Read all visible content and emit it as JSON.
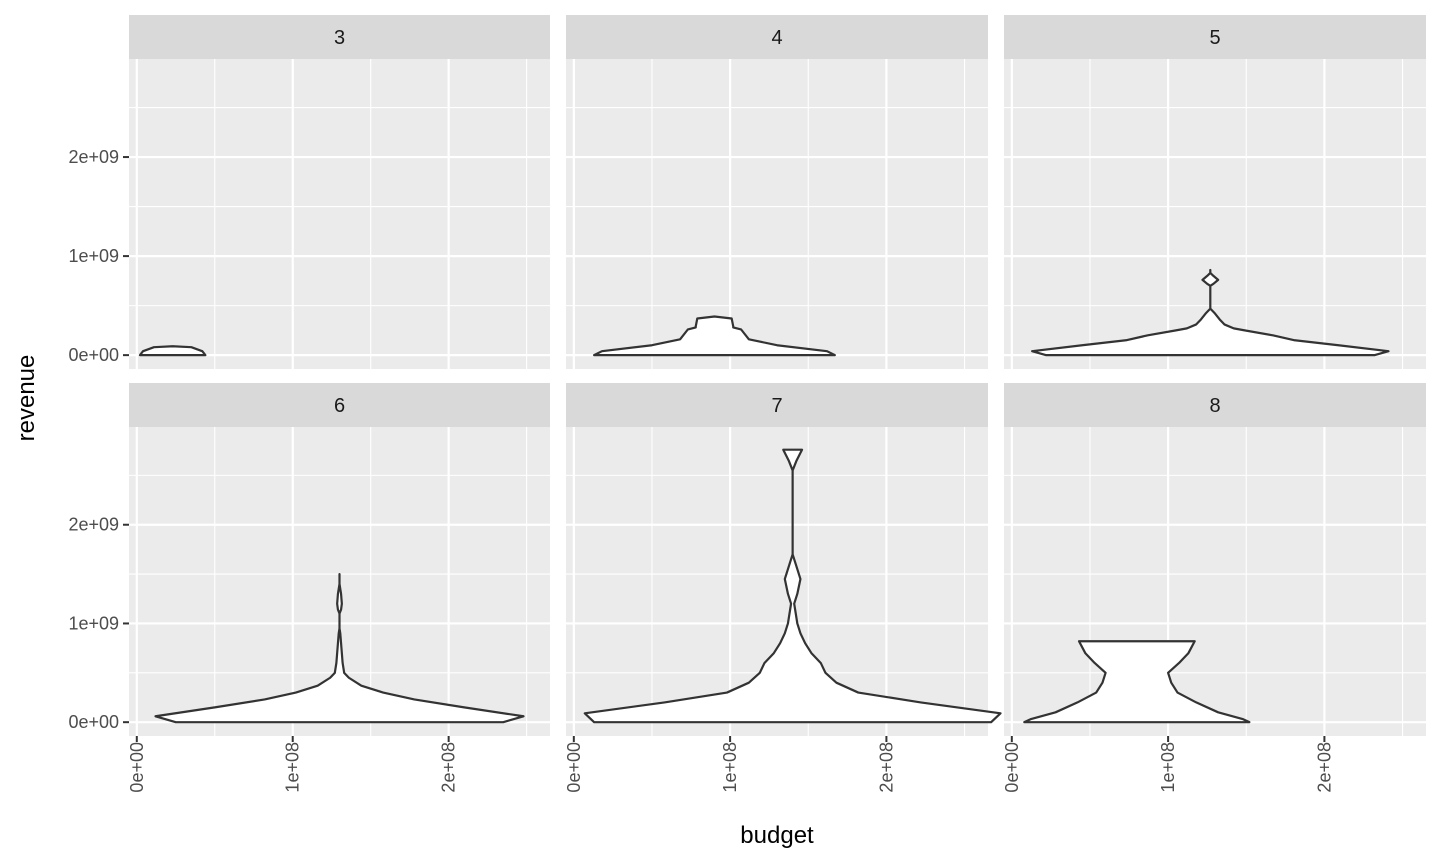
{
  "chart_data": {
    "type": "violin",
    "facet_by": "panel",
    "xlabel": "budget",
    "ylabel": "revenue",
    "xlim": [
      -5000000,
      265000000
    ],
    "ylim": [
      -140000000,
      2990000000
    ],
    "x_ticks": [
      {
        "value": 0,
        "label": "0e+00"
      },
      {
        "value": 100000000,
        "label": "1e+08"
      },
      {
        "value": 200000000,
        "label": "2e+08"
      }
    ],
    "y_ticks": [
      {
        "value": 0,
        "label": "0e+00"
      },
      {
        "value": 1000000000,
        "label": "1e+09"
      },
      {
        "value": 2000000000,
        "label": "2e+09"
      }
    ],
    "panels": [
      {
        "label": "3",
        "center": 23000000,
        "profile": [
          [
            0,
            21000000
          ],
          [
            40000000,
            19000000
          ],
          [
            80000000,
            12000000
          ],
          [
            90000000,
            0
          ]
        ]
      },
      {
        "label": "4",
        "center": 90000000,
        "profile": [
          [
            0,
            77000000
          ],
          [
            40000000,
            72000000
          ],
          [
            100000000,
            40000000
          ],
          [
            160000000,
            22000000
          ],
          [
            260000000,
            17000000
          ],
          [
            280000000,
            12000000
          ],
          [
            290000000,
            12000000
          ],
          [
            370000000,
            11000000
          ],
          [
            390000000,
            0
          ]
        ]
      },
      {
        "label": "5",
        "center": 127000000,
        "profile": [
          [
            0,
            105000000
          ],
          [
            40000000,
            114000000
          ],
          [
            100000000,
            82000000
          ],
          [
            150000000,
            54000000
          ],
          [
            200000000,
            40000000
          ],
          [
            250000000,
            22000000
          ],
          [
            270000000,
            15000000
          ],
          [
            310000000,
            9000000
          ],
          [
            360000000,
            6000000
          ],
          [
            420000000,
            3000000
          ],
          [
            470000000,
            0
          ],
          [
            500000000,
            0
          ],
          [
            600000000,
            0
          ],
          [
            700000000,
            0
          ],
          [
            720000000,
            2000000
          ],
          [
            760000000,
            5000000
          ],
          [
            800000000,
            2000000
          ],
          [
            830000000,
            0
          ],
          [
            860000000,
            0
          ]
        ]
      },
      {
        "label": "6",
        "center": 130000000,
        "profile": [
          [
            0,
            105000000
          ],
          [
            60000000,
            118000000
          ],
          [
            150000000,
            80000000
          ],
          [
            230000000,
            48000000
          ],
          [
            300000000,
            28000000
          ],
          [
            370000000,
            14000000
          ],
          [
            450000000,
            6000000
          ],
          [
            500000000,
            3000000
          ],
          [
            600000000,
            2000000
          ],
          [
            700000000,
            1500000
          ],
          [
            800000000,
            1000000
          ],
          [
            900000000,
            500000
          ],
          [
            950000000,
            0
          ],
          [
            1000000000,
            0
          ],
          [
            1100000000,
            0
          ],
          [
            1140000000,
            1000000
          ],
          [
            1200000000,
            1500000
          ],
          [
            1300000000,
            1000000
          ],
          [
            1400000000,
            0
          ],
          [
            1500000000,
            0
          ]
        ]
      },
      {
        "label": "7",
        "center": 140000000,
        "profile": [
          [
            0,
            127000000
          ],
          [
            90000000,
            133000000
          ],
          [
            200000000,
            82000000
          ],
          [
            300000000,
            42000000
          ],
          [
            400000000,
            28000000
          ],
          [
            500000000,
            21000000
          ],
          [
            600000000,
            18000000
          ],
          [
            700000000,
            12000000
          ],
          [
            800000000,
            8000000
          ],
          [
            900000000,
            5000000
          ],
          [
            1000000000,
            3000000
          ],
          [
            1100000000,
            2000000
          ],
          [
            1200000000,
            1000000
          ],
          [
            1300000000,
            3000000
          ],
          [
            1450000000,
            5000000
          ],
          [
            1600000000,
            2000000
          ],
          [
            1700000000,
            0
          ],
          [
            1800000000,
            0
          ],
          [
            2000000000,
            0
          ],
          [
            2200000000,
            0
          ],
          [
            2400000000,
            0
          ],
          [
            2550000000,
            0
          ],
          [
            2650000000,
            2500000
          ],
          [
            2760000000,
            6000000
          ]
        ]
      },
      {
        "label": "8",
        "center": 80000000,
        "profile": [
          [
            0,
            72000000
          ],
          [
            30000000,
            68000000
          ],
          [
            100000000,
            52000000
          ],
          [
            200000000,
            38000000
          ],
          [
            300000000,
            26000000
          ],
          [
            400000000,
            22000000
          ],
          [
            500000000,
            20000000
          ],
          [
            600000000,
            27000000
          ],
          [
            700000000,
            33000000
          ],
          [
            820000000,
            37000000
          ]
        ]
      }
    ]
  }
}
